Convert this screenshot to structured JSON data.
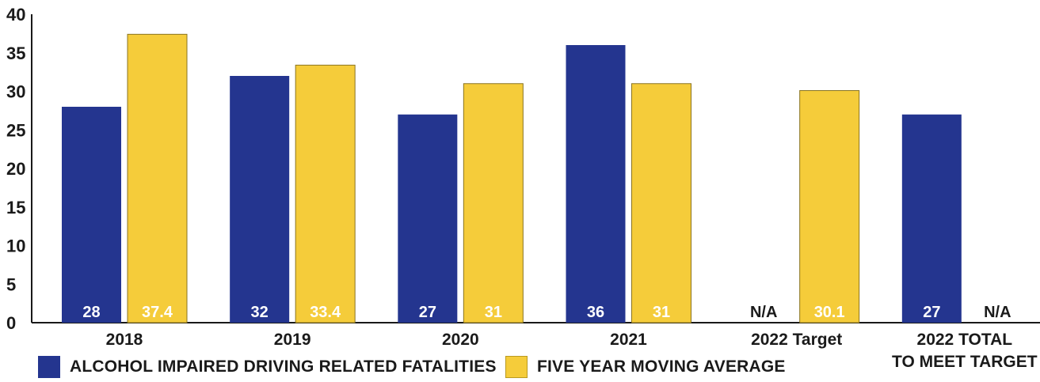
{
  "chart_data": {
    "type": "bar",
    "categories": [
      "2018",
      "2019",
      "2020",
      "2021",
      "2022 Target",
      "2022 TOTAL TO MEET TARGET"
    ],
    "series": [
      {
        "name": "ALCOHOL IMPAIRED DRIVING RELATED FATALITIES",
        "color": "#24358f",
        "values": [
          28,
          32,
          27,
          36,
          null,
          27
        ],
        "labels": [
          "28",
          "32",
          "27",
          "36",
          "N/A",
          "27"
        ]
      },
      {
        "name": "FIVE YEAR MOVING AVERAGE",
        "color": "#f5cc3a",
        "values": [
          37.4,
          33.4,
          31,
          31,
          30.1,
          null
        ],
        "labels": [
          "37.4",
          "33.4",
          "31",
          "31",
          "30.1",
          "N/A"
        ]
      }
    ],
    "ylim": [
      0,
      40
    ],
    "yticks": [
      "0",
      "5",
      "10",
      "15",
      "20",
      "25",
      "30",
      "35",
      "40"
    ],
    "grid": false,
    "legend_position": "bottom"
  }
}
